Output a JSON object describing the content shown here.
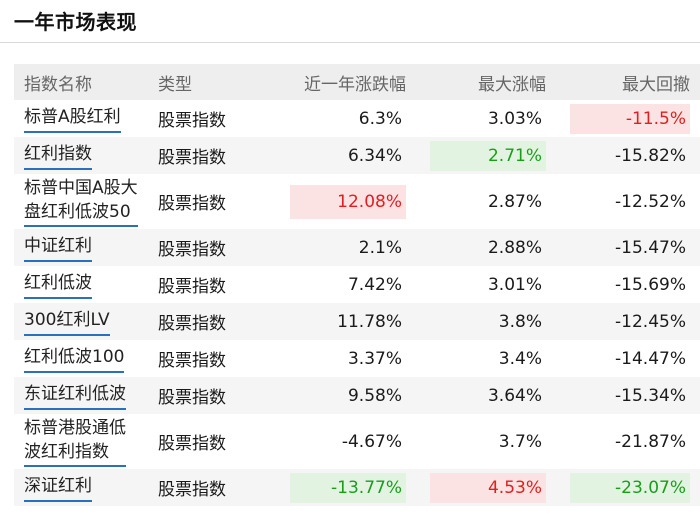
{
  "title": "一年市场表现",
  "headers": {
    "name": "指数名称",
    "type": "类型",
    "change": "近一年涨跌幅",
    "max_up": "最大涨幅",
    "max_down": "最大回撤"
  },
  "colors": {
    "highlight_red_bg": "#fbe3e3",
    "highlight_green_bg": "#e2f3e2",
    "red_text": "#e02020",
    "green_text": "#1a9e1a",
    "link_underline": "#2b6fbf"
  },
  "rows": [
    {
      "name": "标普A股红利",
      "type": "股票指数",
      "change": "6.3%",
      "max_up": "3.03%",
      "max_down": "-11.5%"
    },
    {
      "name": "红利指数",
      "type": "股票指数",
      "change": "6.34%",
      "max_up": "2.71%",
      "max_down": "-15.82%"
    },
    {
      "name_line1": "标普中国A股大",
      "name_line2": "盘红利低波50",
      "type": "股票指数",
      "change": "12.08%",
      "max_up": "2.87%",
      "max_down": "-12.52%"
    },
    {
      "name": "中证红利",
      "type": "股票指数",
      "change": "2.1%",
      "max_up": "2.88%",
      "max_down": "-15.47%"
    },
    {
      "name": "红利低波",
      "type": "股票指数",
      "change": "7.42%",
      "max_up": "3.01%",
      "max_down": "-15.69%"
    },
    {
      "name": "300红利LV",
      "type": "股票指数",
      "change": "11.78%",
      "max_up": "3.8%",
      "max_down": "-12.45%"
    },
    {
      "name": "红利低波100",
      "type": "股票指数",
      "change": "3.37%",
      "max_up": "3.4%",
      "max_down": "-14.47%"
    },
    {
      "name": "东证红利低波",
      "type": "股票指数",
      "change": "9.58%",
      "max_up": "3.64%",
      "max_down": "-15.34%"
    },
    {
      "name_line1": "标普港股通低",
      "name_line2": "波红利指数",
      "type": "股票指数",
      "change": "-4.67%",
      "max_up": "3.7%",
      "max_down": "-21.87%"
    },
    {
      "name": "深证红利",
      "type": "股票指数",
      "change": "-13.77%",
      "max_up": "4.53%",
      "max_down": "-23.07%"
    }
  ]
}
